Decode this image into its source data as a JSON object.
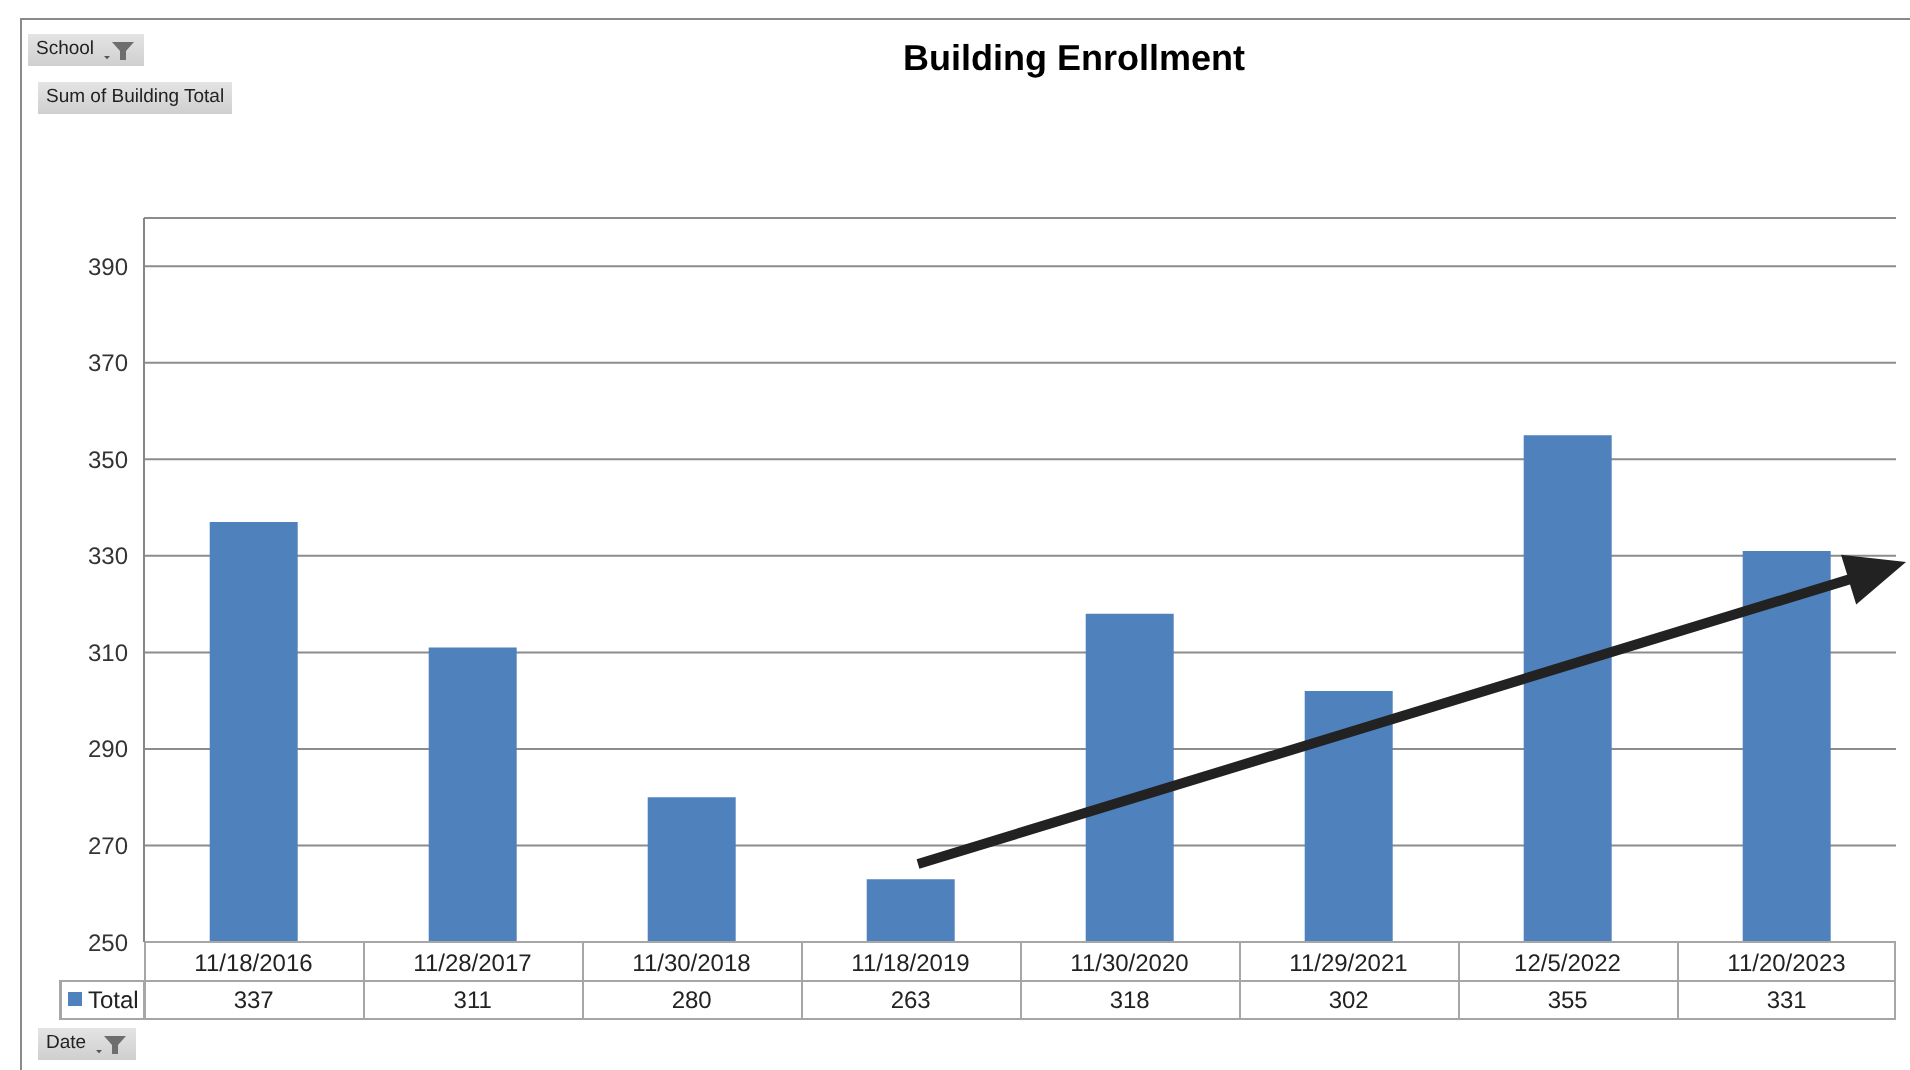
{
  "chart_data": {
    "type": "bar",
    "title": "Building Enrollment",
    "xlabel": "Date",
    "annotations": [
      "School",
      "Sum of Building Total"
    ],
    "categories": [
      "11/18/2016",
      "11/28/2017",
      "11/30/2018",
      "11/18/2019",
      "11/30/2020",
      "11/29/2021",
      "12/5/2022",
      "11/20/2023"
    ],
    "series": [
      {
        "name": "Total",
        "color": "#4f81bd",
        "values": [
          337,
          311,
          280,
          263,
          318,
          302,
          355,
          331
        ]
      }
    ],
    "ylim": [
      250,
      400
    ],
    "yticks": [
      250,
      270,
      290,
      310,
      330,
      350,
      370,
      390
    ],
    "grid": "y",
    "legend": "bottom left",
    "data_labels": true
  }
}
